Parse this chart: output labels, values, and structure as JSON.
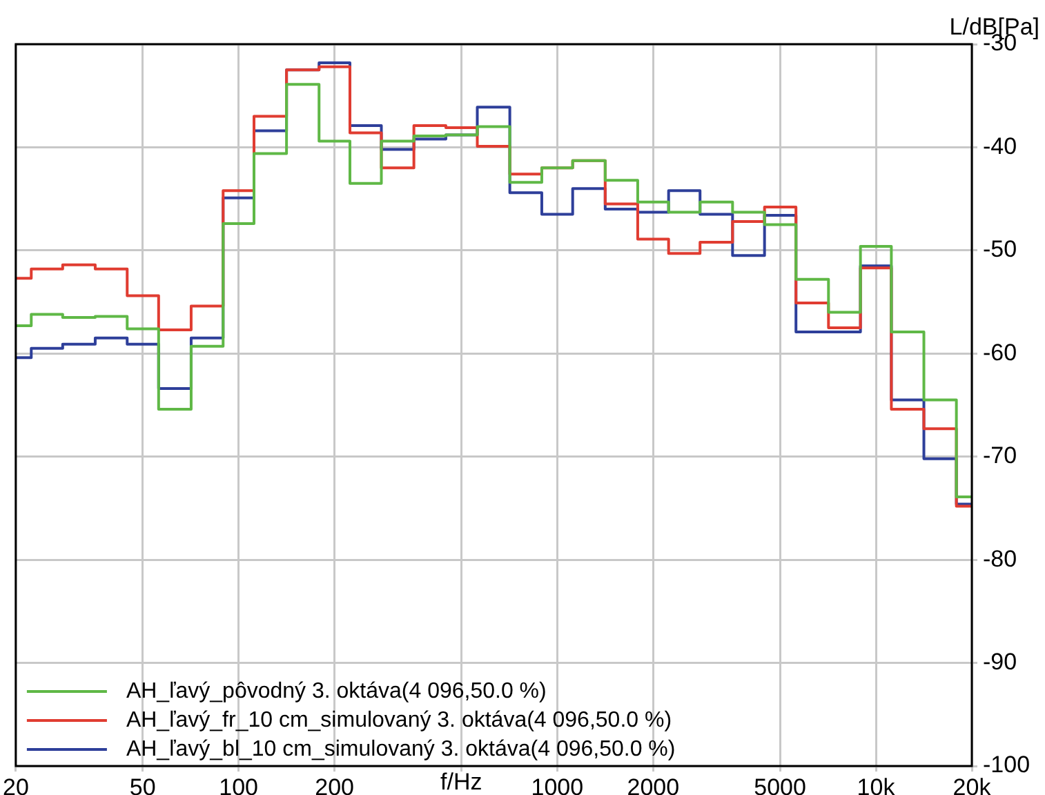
{
  "chart_data": {
    "type": "step",
    "xlabel": "f/Hz",
    "ylabel": "L/dB[Pa]",
    "log": "x",
    "grid": true,
    "legend": "bottom left",
    "x": [
      20,
      25,
      31.5,
      40,
      50,
      63,
      80,
      100,
      125,
      160,
      200,
      250,
      315,
      400,
      500,
      630,
      800,
      1000,
      1250,
      1600,
      2000,
      2500,
      3150,
      4000,
      5000,
      6300,
      8000,
      10000,
      12500,
      16000,
      20000
    ],
    "xlim": [
      20,
      20000
    ],
    "xticks": [
      {
        "value": 20,
        "label": "20"
      },
      {
        "value": 50,
        "label": "50"
      },
      {
        "value": 100,
        "label": "100"
      },
      {
        "value": 200,
        "label": "200"
      },
      {
        "value": 500,
        "label": null
      },
      {
        "value": 1000,
        "label": "1000"
      },
      {
        "value": 2000,
        "label": "2000"
      },
      {
        "value": 5000,
        "label": "5000"
      },
      {
        "value": 10000,
        "label": "10k"
      },
      {
        "value": 20000,
        "label": "20k"
      }
    ],
    "ylim": [
      -100,
      -30
    ],
    "yticks": [
      -100,
      -90,
      -80,
      -70,
      -60,
      -50,
      -40,
      -30
    ],
    "series": [
      {
        "name": "AH_ľavý_pôvodný 3. oktáva(4 096,50.0 %)",
        "color": "#5fb846",
        "values": [
          -57.3,
          -56.2,
          -56.5,
          -56.4,
          -57.6,
          -65.4,
          -59.3,
          -47.4,
          -40.6,
          -33.9,
          -39.4,
          -43.5,
          -39.4,
          -38.9,
          -38.8,
          -38.0,
          -43.4,
          -42.0,
          -41.3,
          -43.2,
          -45.3,
          -46.3,
          -45.3,
          -46.3,
          -47.5,
          -52.8,
          -56.0,
          -49.6,
          -57.9,
          -64.5,
          -73.9
        ]
      },
      {
        "name": "AH_ľavý_fr_10 cm_simulovaný 3. oktáva(4 096,50.0 %)",
        "color": "#e03c31",
        "values": [
          -52.7,
          -51.8,
          -51.4,
          -51.8,
          -54.4,
          -57.7,
          -55.4,
          -44.2,
          -37.0,
          -32.5,
          -32.2,
          -38.6,
          -42.0,
          -37.9,
          -38.1,
          -39.9,
          -42.6,
          -42.0,
          -41.3,
          -45.5,
          -48.9,
          -50.3,
          -49.2,
          -47.2,
          -45.8,
          -55.1,
          -57.5,
          -51.7,
          -65.4,
          -67.3,
          -74.8
        ]
      },
      {
        "name": "AH_ľavý_bl_10 cm_simulovaný 3. oktáva(4 096,50.0 %)",
        "color": "#2e3f9a",
        "values": [
          -60.4,
          -59.5,
          -59.1,
          -58.5,
          -59.1,
          -63.4,
          -58.5,
          -44.9,
          -38.4,
          -32.5,
          -31.8,
          -37.9,
          -40.2,
          -39.2,
          -38.8,
          -36.1,
          -44.4,
          -46.5,
          -44.0,
          -46.0,
          -46.3,
          -44.2,
          -46.5,
          -50.5,
          -46.6,
          -57.9,
          -57.9,
          -51.5,
          -64.5,
          -70.2,
          -74.6
        ]
      }
    ]
  }
}
